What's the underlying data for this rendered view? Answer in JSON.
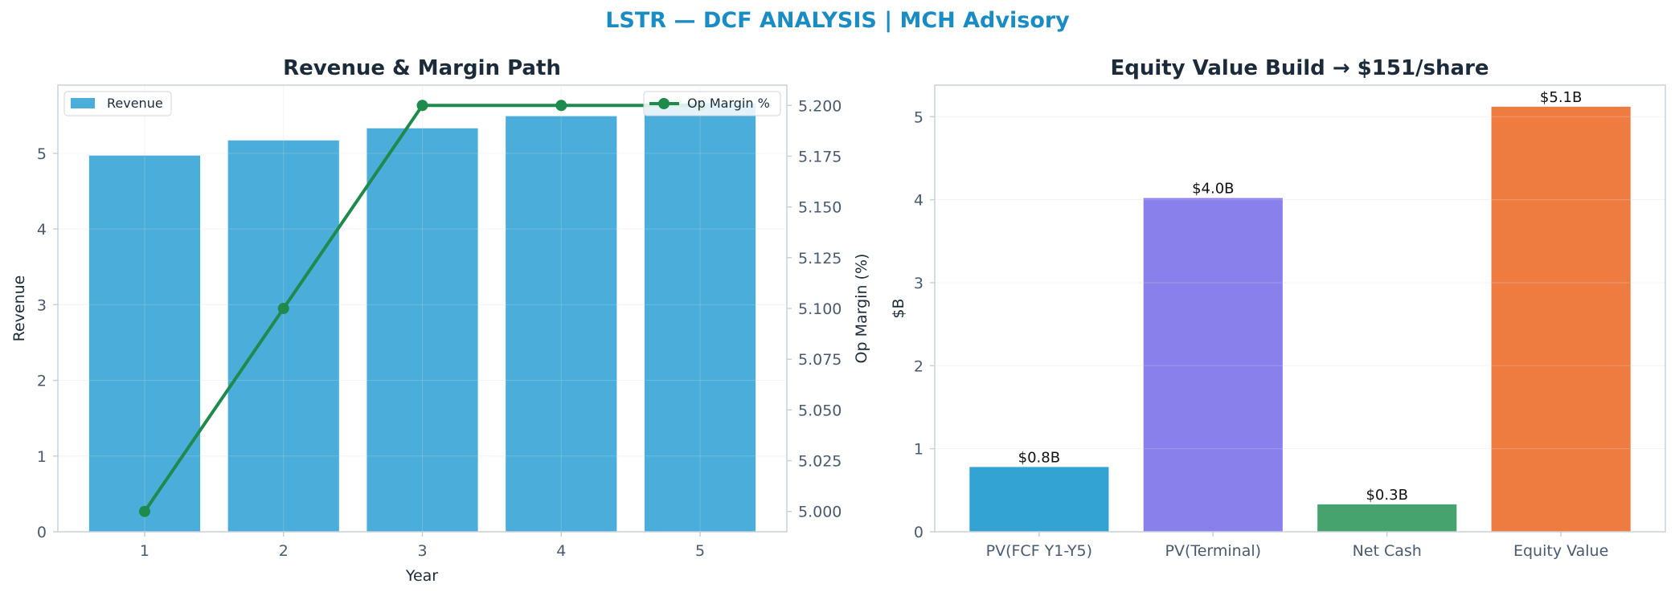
{
  "suptitle": "LSTR — DCF ANALYSIS | MCH Advisory",
  "colors": {
    "title_accent": "#1a8cc4",
    "title_dark": "#1c2b3a",
    "axis": "#c8d0da",
    "tick_label": "#4a5a6e",
    "grid": "#eef1f5",
    "revenue_bar": "#4badd9",
    "margin_line": "#1e8a4c"
  },
  "chart_data": [
    {
      "type": "bar",
      "title": "Revenue & Margin Path",
      "xlabel": "Year",
      "ylabel": "Revenue",
      "y2label": "Op Margin (%)",
      "categories": [
        "1",
        "2",
        "3",
        "4",
        "5"
      ],
      "series": [
        {
          "name": "Revenue",
          "type": "bar",
          "axis": "left",
          "values": [
            4.97,
            5.17,
            5.33,
            5.49,
            5.66
          ]
        },
        {
          "name": "Op Margin %",
          "type": "line",
          "axis": "right",
          "values": [
            5.0,
            5.1,
            5.2,
            5.2,
            5.2
          ]
        }
      ],
      "ylim": [
        0,
        5.9
      ],
      "yticks": [
        0,
        1,
        2,
        3,
        4,
        5
      ],
      "y2lim": [
        4.99,
        5.21
      ],
      "y2ticks": [
        "5.000",
        "5.025",
        "5.050",
        "5.075",
        "5.100",
        "5.125",
        "5.150",
        "5.175",
        "5.200"
      ],
      "legend_left": "upper-left",
      "legend_right": "upper-right",
      "grid": true
    },
    {
      "type": "bar",
      "title": "Equity Value Build → $151/share",
      "xlabel": "",
      "ylabel": "$B",
      "categories": [
        "PV(FCF Y1-Y5)",
        "PV(Terminal)",
        "Net Cash",
        "Equity Value"
      ],
      "values": [
        0.78,
        4.02,
        0.33,
        5.12
      ],
      "data_labels": [
        "$0.8B",
        "$4.0B",
        "$0.3B",
        "$5.1B"
      ],
      "bar_colors": [
        "#33a3d4",
        "#8a80ec",
        "#47a36e",
        "#ee7c40"
      ],
      "ylim": [
        0,
        5.38
      ],
      "yticks": [
        0,
        1,
        2,
        3,
        4,
        5
      ],
      "grid": true
    }
  ]
}
